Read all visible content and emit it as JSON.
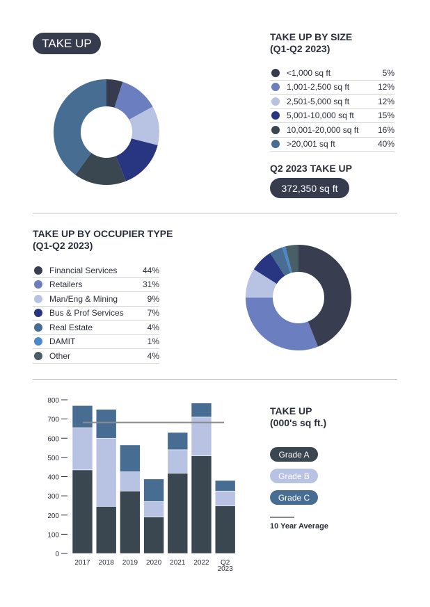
{
  "header": {
    "label": "TAKE UP"
  },
  "size": {
    "title": "TAKE UP BY SIZE",
    "subtitle": "(Q1-Q2 2023)",
    "items": [
      {
        "label": "<1,000 sq ft",
        "value": "5%",
        "pct": 5,
        "color": "#363b4e"
      },
      {
        "label": "1,001-2,500 sq ft",
        "value": "12%",
        "pct": 12,
        "color": "#6b7fc0"
      },
      {
        "label": "2,501-5,000 sq ft",
        "value": "12%",
        "pct": 12,
        "color": "#b8c2e3"
      },
      {
        "label": "5,001-10,000 sq ft",
        "value": "15%",
        "pct": 15,
        "color": "#283580"
      },
      {
        "label": "10,001-20,000 sq ft",
        "value": "16%",
        "pct": 16,
        "color": "#3a4650"
      },
      {
        "label": ">20,001 sq ft",
        "value": "40%",
        "pct": 40,
        "color": "#486d93"
      }
    ]
  },
  "q2": {
    "title": "Q2 2023 TAKE UP",
    "value": "372,350 sq ft"
  },
  "occupier": {
    "title": "TAKE UP BY OCCUPIER TYPE",
    "subtitle": "(Q1-Q2 2023)",
    "items": [
      {
        "label": "Financial Services",
        "value": "44%",
        "pct": 44,
        "color": "#383d50"
      },
      {
        "label": "Retailers",
        "value": "31%",
        "pct": 31,
        "color": "#6b7fc0"
      },
      {
        "label": "Man/Eng & Mining",
        "value": "9%",
        "pct": 9,
        "color": "#b8c2e3"
      },
      {
        "label": "Bus & Prof Services",
        "value": "7%",
        "pct": 7,
        "color": "#283580"
      },
      {
        "label": "Real Estate",
        "value": "4%",
        "pct": 4,
        "color": "#486d93"
      },
      {
        "label": "DAMIT",
        "value": "1%",
        "pct": 1,
        "color": "#4a88cc"
      },
      {
        "label": "Other",
        "value": "4%",
        "pct": 4,
        "color": "#4a5e68"
      }
    ]
  },
  "chart_data": {
    "type": "bar",
    "stacked": true,
    "title": "TAKE UP",
    "subtitle": "(000's sq ft.)",
    "categories": [
      "2017",
      "2018",
      "2019",
      "2020",
      "2021",
      "2022",
      "Q2 2023"
    ],
    "series": [
      {
        "name": "Grade A",
        "color": "#3a4650",
        "values": [
          435,
          245,
          325,
          190,
          418,
          508,
          248
        ]
      },
      {
        "name": "Grade B",
        "color": "#b8c2e3",
        "values": [
          220,
          355,
          100,
          80,
          122,
          202,
          77
        ]
      },
      {
        "name": "Grade C",
        "color": "#486d93",
        "values": [
          115,
          150,
          140,
          118,
          90,
          73,
          55
        ]
      }
    ],
    "average": {
      "name": "10 Year Average",
      "value": 682,
      "color": "#8a8a8a"
    },
    "ylim": [
      0,
      800
    ],
    "yticks": [
      "0",
      "100",
      "200",
      "300",
      "400",
      "500",
      "600",
      "700",
      "800"
    ],
    "grid": false,
    "legend": "right"
  }
}
